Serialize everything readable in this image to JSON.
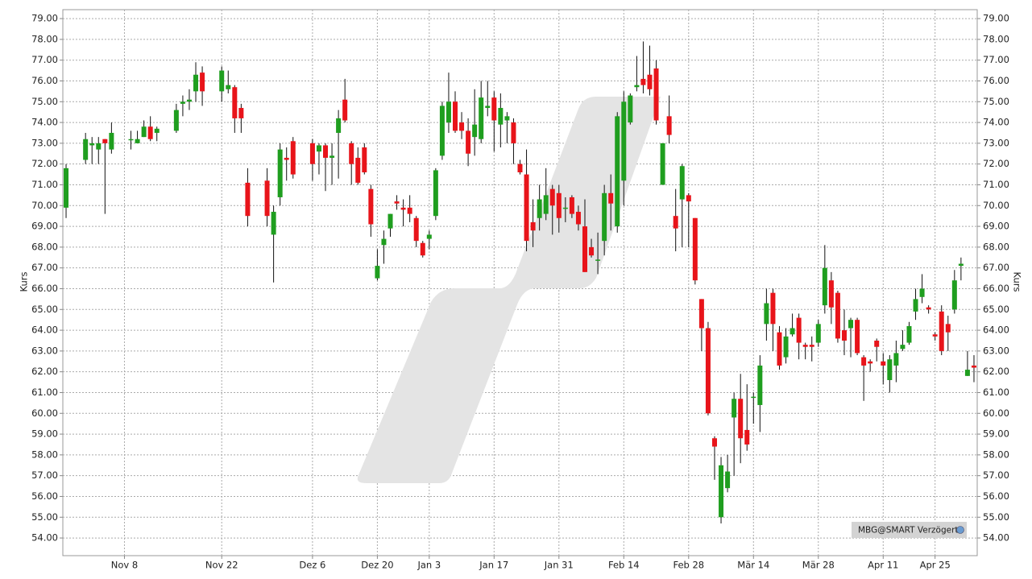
{
  "chart_data": {
    "type": "candlestick",
    "y_label": "Kurs",
    "source_label": "MBG@SMART Verzögert",
    "up_color": "#1f9e1f",
    "down_color": "#e8141a",
    "grid": true,
    "ylim": [
      53.15,
      79.43
    ],
    "yticks": [
      {
        "value": 54,
        "label": "54.00"
      },
      {
        "value": 55,
        "label": "55.00"
      },
      {
        "value": 56,
        "label": "56.00"
      },
      {
        "value": 57,
        "label": "57.00"
      },
      {
        "value": 58,
        "label": "58.00"
      },
      {
        "value": 59,
        "label": "59.00"
      },
      {
        "value": 60,
        "label": "60.00"
      },
      {
        "value": 61,
        "label": "61.00"
      },
      {
        "value": 62,
        "label": "62.00"
      },
      {
        "value": 63,
        "label": "63.00"
      },
      {
        "value": 64,
        "label": "64.00"
      },
      {
        "value": 65,
        "label": "65.00"
      },
      {
        "value": 66,
        "label": "66.00"
      },
      {
        "value": 67,
        "label": "67.00"
      },
      {
        "value": 68,
        "label": "68.00"
      },
      {
        "value": 69,
        "label": "69.00"
      },
      {
        "value": 70,
        "label": "70.00"
      },
      {
        "value": 71,
        "label": "71.00"
      },
      {
        "value": 72,
        "label": "72.00"
      },
      {
        "value": 73,
        "label": "73.00"
      },
      {
        "value": 74,
        "label": "74.00"
      },
      {
        "value": 75,
        "label": "75.00"
      },
      {
        "value": 76,
        "label": "76.00"
      },
      {
        "value": 77,
        "label": "77.00"
      },
      {
        "value": 78,
        "label": "78.00"
      },
      {
        "value": 79,
        "label": "79.00"
      }
    ],
    "categories": [
      null,
      null,
      null,
      null,
      null,
      null,
      null,
      null,
      null,
      "Nov 8",
      null,
      null,
      null,
      null,
      null,
      null,
      null,
      null,
      null,
      null,
      null,
      null,
      null,
      null,
      "Nov 22",
      null,
      null,
      null,
      null,
      null,
      null,
      null,
      null,
      null,
      null,
      null,
      null,
      null,
      "Dez 6",
      null,
      null,
      null,
      null,
      null,
      null,
      null,
      null,
      null,
      "Dez 20",
      null,
      null,
      null,
      null,
      null,
      null,
      null,
      "Jan 3",
      null,
      null,
      null,
      null,
      null,
      null,
      null,
      null,
      null,
      "Jan 17",
      null,
      null,
      null,
      null,
      null,
      null,
      null,
      null,
      null,
      "Jan 31",
      null,
      null,
      null,
      null,
      null,
      null,
      null,
      null,
      null,
      "Feb 14",
      null,
      null,
      null,
      null,
      null,
      null,
      null,
      null,
      null,
      "Feb 28",
      null,
      null,
      null,
      null,
      null,
      null,
      null,
      null,
      null,
      "Mär 14",
      null,
      null,
      null,
      null,
      null,
      null,
      null,
      null,
      null,
      "Mär 28",
      null,
      null,
      null,
      null,
      null,
      null,
      null,
      null,
      null,
      "Apr 11",
      null,
      null,
      null,
      null,
      null,
      null,
      null,
      "Apr 25",
      null,
      null,
      null,
      null,
      null,
      null
    ],
    "open": [
      69.9,
      null,
      null,
      72.2,
      72.9,
      72.7,
      73.2,
      72.7,
      null,
      null,
      73.2,
      73.0,
      73.3,
      73.8,
      73.5,
      null,
      null,
      73.6,
      74.9,
      75.0,
      75.5,
      76.4,
      null,
      null,
      75.5,
      75.6,
      75.7,
      74.7,
      71.1,
      null,
      null,
      71.2,
      68.6,
      70.4,
      72.3,
      73.1,
      null,
      null,
      73.0,
      72.6,
      72.9,
      72.3,
      73.5,
      75.1,
      73.0,
      72.3,
      72.8,
      70.8,
      66.5,
      68.1,
      68.9,
      70.2,
      69.9,
      69.9,
      69.4,
      68.2,
      68.4,
      69.5,
      72.4,
      74.0,
      75.0,
      74.0,
      73.6,
      73.3,
      73.2,
      74.7,
      75.2,
      73.9,
      74.1,
      74.0,
      72.0,
      71.5,
      69.2,
      69.4,
      69.6,
      70.8,
      70.6,
      69.9,
      70.4,
      69.7,
      69.0,
      68.0,
      67.4,
      68.3,
      70.6,
      69.0,
      71.2,
      74.0,
      75.7,
      76.1,
      76.3,
      76.6,
      71.0,
      74.3,
      69.5,
      70.3,
      70.5,
      69.4,
      65.5,
      64.1,
      58.8,
      55.0,
      56.4,
      59.8,
      60.7,
      59.2,
      60.8,
      60.4,
      64.3,
      65.8,
      63.9,
      62.7,
      63.8,
      64.6,
      63.3,
      63.3,
      63.4,
      65.2,
      66.4,
      65.8,
      64.0,
      64.1,
      64.5,
      62.7,
      62.5,
      63.5,
      62.5,
      61.6,
      62.3,
      63.1,
      63.4,
      64.9,
      65.6,
      65.1,
      63.8,
      64.9,
      64.3,
      65.0,
      67.1,
      61.8,
      62.3
    ],
    "high": [
      72.0,
      null,
      null,
      73.5,
      73.3,
      73.3,
      73.2,
      74.0,
      null,
      null,
      73.6,
      73.6,
      74.1,
      74.3,
      73.8,
      null,
      null,
      74.9,
      75.3,
      75.6,
      76.9,
      76.7,
      null,
      null,
      76.7,
      76.5,
      75.8,
      74.9,
      71.8,
      null,
      null,
      71.8,
      70.0,
      73.0,
      72.8,
      73.3,
      null,
      null,
      73.2,
      73.0,
      73.0,
      73.0,
      74.6,
      76.1,
      73.1,
      72.8,
      73.0,
      71.0,
      67.9,
      68.8,
      69.6,
      70.5,
      70.3,
      70.5,
      69.5,
      68.3,
      68.8,
      71.8,
      75.0,
      76.4,
      75.5,
      74.5,
      74.2,
      75.6,
      76.0,
      76.0,
      75.5,
      75.4,
      74.5,
      74.2,
      72.2,
      72.7,
      70.3,
      71.0,
      71.8,
      71.0,
      71.0,
      70.4,
      70.5,
      70.0,
      70.3,
      68.4,
      68.7,
      71.0,
      71.5,
      74.5,
      75.5,
      75.4,
      77.2,
      77.9,
      77.7,
      77.0,
      73.0,
      75.3,
      70.8,
      72.0,
      70.6,
      69.4,
      65.5,
      64.4,
      58.9,
      57.9,
      58.0,
      61.0,
      61.9,
      61.4,
      61.0,
      62.8,
      66.0,
      66.0,
      64.2,
      64.1,
      64.8,
      64.8,
      63.4,
      63.7,
      64.5,
      68.1,
      66.8,
      65.9,
      65.0,
      64.6,
      64.6,
      62.8,
      62.6,
      63.6,
      62.9,
      62.8,
      63.5,
      64.0,
      64.4,
      66.0,
      66.7,
      65.2,
      63.9,
      65.2,
      64.7,
      66.9,
      67.5,
      63.0,
      62.8
    ],
    "low": [
      69.4,
      null,
      null,
      72.0,
      72.0,
      72.0,
      69.6,
      72.5,
      null,
      null,
      72.7,
      73.0,
      73.3,
      73.1,
      73.1,
      null,
      null,
      73.5,
      74.3,
      74.6,
      75.0,
      74.8,
      null,
      null,
      75.0,
      75.4,
      73.5,
      73.5,
      69.0,
      null,
      null,
      69.0,
      66.3,
      70.0,
      71.2,
      71.3,
      null,
      null,
      71.2,
      71.5,
      70.7,
      71.0,
      71.3,
      74.0,
      71.0,
      71.0,
      71.5,
      68.5,
      66.4,
      67.2,
      68.5,
      69.8,
      69.0,
      69.2,
      68.0,
      67.5,
      67.9,
      69.3,
      72.2,
      73.5,
      73.5,
      73.2,
      71.9,
      72.4,
      73.0,
      74.3,
      72.6,
      72.8,
      73.0,
      72.0,
      71.5,
      67.8,
      68.0,
      68.8,
      69.3,
      68.6,
      68.7,
      69.2,
      69.4,
      68.8,
      66.8,
      67.5,
      66.7,
      67.6,
      68.8,
      68.7,
      70.0,
      73.9,
      75.5,
      75.4,
      75.3,
      73.9,
      71.0,
      73.0,
      67.8,
      68.0,
      68.0,
      66.2,
      63.0,
      59.9,
      56.8,
      54.7,
      56.2,
      57.0,
      57.6,
      58.2,
      59.5,
      59.1,
      63.5,
      63.0,
      62.1,
      62.4,
      63.7,
      62.6,
      62.6,
      62.5,
      63.2,
      64.8,
      64.3,
      63.4,
      62.8,
      62.7,
      62.8,
      60.6,
      62.0,
      62.5,
      61.4,
      61.0,
      61.5,
      63.0,
      63.3,
      64.5,
      65.3,
      64.8,
      63.5,
      62.8,
      63.0,
      64.8,
      66.4,
      61.8,
      61.5
    ],
    "close": [
      71.8,
      null,
      null,
      73.2,
      73.0,
      73.0,
      73.0,
      73.5,
      null,
      null,
      73.2,
      73.2,
      73.8,
      73.2,
      73.7,
      null,
      null,
      74.6,
      75.0,
      75.1,
      76.3,
      75.5,
      null,
      null,
      76.5,
      75.8,
      74.2,
      74.2,
      69.5,
      null,
      null,
      69.5,
      69.7,
      72.7,
      72.2,
      71.5,
      null,
      null,
      72.0,
      72.9,
      72.3,
      72.4,
      74.2,
      74.1,
      72.0,
      71.1,
      71.6,
      69.1,
      67.1,
      68.4,
      69.6,
      70.1,
      69.8,
      69.6,
      68.3,
      67.6,
      68.6,
      71.7,
      74.8,
      75.0,
      73.6,
      73.6,
      72.5,
      73.9,
      75.2,
      74.8,
      74.1,
      74.7,
      74.3,
      73.0,
      71.6,
      68.3,
      68.8,
      70.3,
      70.5,
      70.0,
      69.4,
      69.9,
      69.6,
      69.1,
      66.8,
      67.6,
      67.4,
      70.6,
      70.1,
      74.3,
      75.0,
      75.3,
      75.8,
      75.8,
      75.6,
      74.1,
      73.0,
      73.4,
      68.9,
      71.9,
      70.2,
      66.4,
      64.1,
      60.0,
      58.4,
      57.5,
      57.2,
      60.7,
      58.8,
      58.5,
      60.8,
      62.3,
      65.3,
      64.3,
      62.3,
      63.7,
      64.1,
      63.4,
      63.2,
      63.2,
      64.3,
      67.0,
      65.1,
      63.6,
      63.5,
      64.5,
      62.9,
      62.3,
      62.4,
      63.2,
      62.3,
      62.6,
      62.9,
      63.3,
      64.2,
      65.5,
      66.0,
      65.0,
      63.7,
      63.0,
      63.9,
      66.4,
      67.2,
      62.1,
      62.2
    ]
  }
}
